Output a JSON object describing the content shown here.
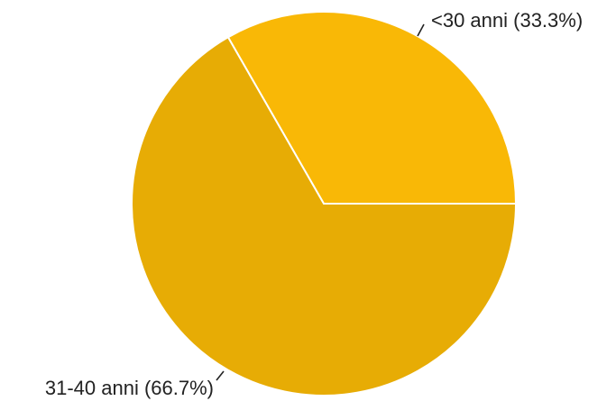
{
  "chart_data": {
    "type": "pie",
    "slices": [
      {
        "label": "<30 anni (33.3%)",
        "value": 33.3,
        "color": "#f9b806"
      },
      {
        "label": "31-40 anni (66.7%)",
        "value": 66.7,
        "color": "#e7ac05"
      }
    ]
  }
}
